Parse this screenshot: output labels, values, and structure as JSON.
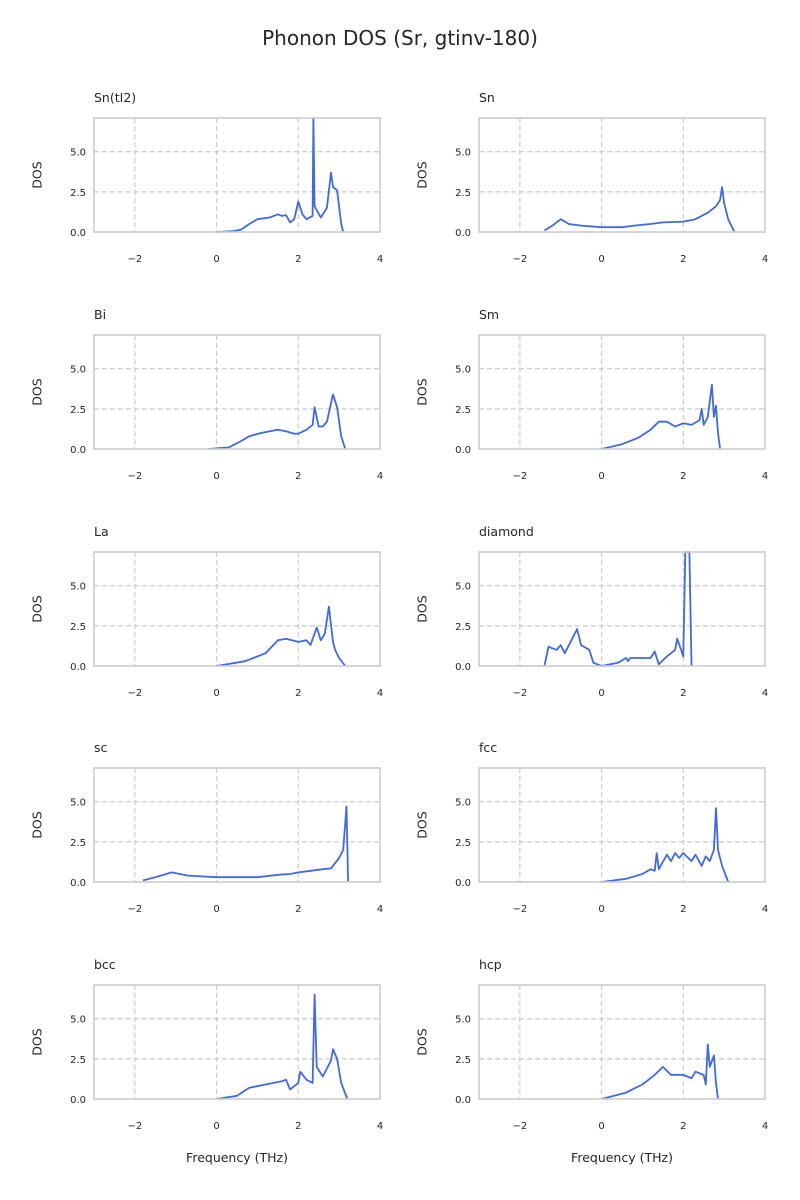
{
  "chart_data": {
    "type": "line",
    "title": "Phonon DOS (Sr, gtinv-180)",
    "xlabel": "Frequency (THz)",
    "ylabel": "DOS",
    "xlim": [
      -3,
      4
    ],
    "ylim": [
      0,
      7.1
    ],
    "xticks": [
      -2,
      0,
      2,
      4
    ],
    "xtick_labels": [
      "−2",
      "0",
      "2",
      "4"
    ],
    "yticks": [
      0,
      2.5,
      5.0
    ],
    "ytick_labels": [
      "0.0",
      "2.5",
      "5.0"
    ],
    "grid": true,
    "line_color": "#4169e1",
    "panels": [
      {
        "title": "Sn(tI2)",
        "points": [
          [
            0,
            0
          ],
          [
            0.4,
            0.05
          ],
          [
            0.6,
            0.15
          ],
          [
            0.8,
            0.5
          ],
          [
            1.0,
            0.8
          ],
          [
            1.3,
            0.9
          ],
          [
            1.5,
            1.1
          ],
          [
            1.6,
            1.0
          ],
          [
            1.7,
            1.05
          ],
          [
            1.8,
            0.6
          ],
          [
            1.9,
            0.8
          ],
          [
            2.0,
            1.9
          ],
          [
            2.1,
            1.1
          ],
          [
            2.2,
            0.8
          ],
          [
            2.35,
            1.0
          ],
          [
            2.37,
            7.1
          ],
          [
            2.4,
            1.6
          ],
          [
            2.55,
            0.9
          ],
          [
            2.7,
            1.5
          ],
          [
            2.8,
            3.7
          ],
          [
            2.85,
            2.8
          ],
          [
            2.95,
            2.6
          ],
          [
            3.05,
            0.5
          ],
          [
            3.1,
            0
          ]
        ]
      },
      {
        "title": "Sn",
        "points": [
          [
            -1.4,
            0.1
          ],
          [
            -1.2,
            0.4
          ],
          [
            -1.0,
            0.8
          ],
          [
            -0.8,
            0.5
          ],
          [
            -0.5,
            0.4
          ],
          [
            0,
            0.3
          ],
          [
            0.5,
            0.3
          ],
          [
            0.8,
            0.4
          ],
          [
            1.2,
            0.5
          ],
          [
            1.5,
            0.6
          ],
          [
            2.0,
            0.65
          ],
          [
            2.3,
            0.8
          ],
          [
            2.6,
            1.2
          ],
          [
            2.8,
            1.6
          ],
          [
            2.9,
            2.0
          ],
          [
            2.95,
            2.8
          ],
          [
            3.0,
            1.8
          ],
          [
            3.1,
            0.8
          ],
          [
            3.25,
            0
          ]
        ]
      },
      {
        "title": "Bi",
        "points": [
          [
            -0.2,
            0
          ],
          [
            0.3,
            0.1
          ],
          [
            0.6,
            0.5
          ],
          [
            0.8,
            0.8
          ],
          [
            1.1,
            1.0
          ],
          [
            1.5,
            1.2
          ],
          [
            1.7,
            1.1
          ],
          [
            1.9,
            0.95
          ],
          [
            2.0,
            0.95
          ],
          [
            2.2,
            1.2
          ],
          [
            2.35,
            1.5
          ],
          [
            2.4,
            2.6
          ],
          [
            2.5,
            1.4
          ],
          [
            2.6,
            1.4
          ],
          [
            2.7,
            1.7
          ],
          [
            2.85,
            3.4
          ],
          [
            2.95,
            2.6
          ],
          [
            3.05,
            0.8
          ],
          [
            3.15,
            0
          ]
        ]
      },
      {
        "title": "Sm",
        "points": [
          [
            0,
            0
          ],
          [
            0.5,
            0.3
          ],
          [
            0.9,
            0.7
          ],
          [
            1.2,
            1.2
          ],
          [
            1.4,
            1.7
          ],
          [
            1.6,
            1.7
          ],
          [
            1.8,
            1.4
          ],
          [
            2.0,
            1.6
          ],
          [
            2.2,
            1.5
          ],
          [
            2.4,
            1.8
          ],
          [
            2.45,
            2.5
          ],
          [
            2.5,
            1.5
          ],
          [
            2.6,
            2.0
          ],
          [
            2.7,
            4.0
          ],
          [
            2.75,
            2.0
          ],
          [
            2.8,
            2.7
          ],
          [
            2.85,
            1.0
          ],
          [
            2.9,
            0
          ]
        ]
      },
      {
        "title": "La",
        "points": [
          [
            0,
            0
          ],
          [
            0.7,
            0.3
          ],
          [
            1.2,
            0.8
          ],
          [
            1.5,
            1.6
          ],
          [
            1.7,
            1.7
          ],
          [
            2.0,
            1.5
          ],
          [
            2.2,
            1.6
          ],
          [
            2.3,
            1.3
          ],
          [
            2.45,
            2.4
          ],
          [
            2.55,
            1.6
          ],
          [
            2.65,
            2.0
          ],
          [
            2.75,
            3.7
          ],
          [
            2.85,
            1.5
          ],
          [
            2.9,
            1.0
          ],
          [
            3.0,
            0.5
          ],
          [
            3.15,
            0
          ]
        ]
      },
      {
        "title": "diamond",
        "points": [
          [
            -1.4,
            0
          ],
          [
            -1.3,
            1.2
          ],
          [
            -1.1,
            1.0
          ],
          [
            -1.0,
            1.3
          ],
          [
            -0.9,
            0.8
          ],
          [
            -0.6,
            2.3
          ],
          [
            -0.5,
            1.3
          ],
          [
            -0.3,
            1.0
          ],
          [
            -0.2,
            0.2
          ],
          [
            0,
            0
          ],
          [
            0.4,
            0.2
          ],
          [
            0.6,
            0.5
          ],
          [
            0.65,
            0.3
          ],
          [
            0.7,
            0.5
          ],
          [
            1.2,
            0.5
          ],
          [
            1.3,
            0.9
          ],
          [
            1.4,
            0.1
          ],
          [
            1.6,
            0.6
          ],
          [
            1.8,
            1.0
          ],
          [
            1.85,
            1.7
          ],
          [
            2.0,
            0.6
          ],
          [
            2.05,
            7.1
          ],
          [
            2.15,
            7.1
          ],
          [
            2.2,
            0
          ]
        ]
      },
      {
        "title": "sc",
        "points": [
          [
            -1.8,
            0.1
          ],
          [
            -1.5,
            0.3
          ],
          [
            -1.1,
            0.6
          ],
          [
            -0.7,
            0.4
          ],
          [
            0,
            0.3
          ],
          [
            1.0,
            0.3
          ],
          [
            1.5,
            0.45
          ],
          [
            1.8,
            0.5
          ],
          [
            2.0,
            0.6
          ],
          [
            2.3,
            0.7
          ],
          [
            2.6,
            0.8
          ],
          [
            2.8,
            0.85
          ],
          [
            3.0,
            1.5
          ],
          [
            3.1,
            2.0
          ],
          [
            3.18,
            4.7
          ],
          [
            3.22,
            0
          ]
        ]
      },
      {
        "title": "fcc",
        "points": [
          [
            0,
            0
          ],
          [
            0.6,
            0.2
          ],
          [
            1.0,
            0.5
          ],
          [
            1.2,
            0.8
          ],
          [
            1.3,
            0.7
          ],
          [
            1.35,
            1.8
          ],
          [
            1.4,
            0.8
          ],
          [
            1.6,
            1.7
          ],
          [
            1.7,
            1.3
          ],
          [
            1.8,
            1.8
          ],
          [
            1.9,
            1.5
          ],
          [
            2.0,
            1.8
          ],
          [
            2.2,
            1.3
          ],
          [
            2.3,
            1.7
          ],
          [
            2.45,
            1.0
          ],
          [
            2.55,
            1.6
          ],
          [
            2.65,
            1.3
          ],
          [
            2.75,
            2.0
          ],
          [
            2.8,
            4.6
          ],
          [
            2.85,
            2.0
          ],
          [
            2.95,
            1.0
          ],
          [
            3.1,
            0
          ]
        ]
      },
      {
        "title": "bcc",
        "points": [
          [
            0,
            0
          ],
          [
            0.5,
            0.2
          ],
          [
            0.8,
            0.7
          ],
          [
            1.2,
            0.9
          ],
          [
            1.6,
            1.1
          ],
          [
            1.7,
            1.2
          ],
          [
            1.8,
            0.6
          ],
          [
            2.0,
            1.0
          ],
          [
            2.05,
            1.7
          ],
          [
            2.2,
            1.2
          ],
          [
            2.35,
            1.0
          ],
          [
            2.4,
            6.5
          ],
          [
            2.45,
            2.0
          ],
          [
            2.6,
            1.4
          ],
          [
            2.8,
            2.4
          ],
          [
            2.85,
            3.1
          ],
          [
            2.95,
            2.5
          ],
          [
            3.05,
            1.0
          ],
          [
            3.2,
            0
          ]
        ]
      },
      {
        "title": "hcp",
        "points": [
          [
            0,
            0
          ],
          [
            0.6,
            0.4
          ],
          [
            1.0,
            0.9
          ],
          [
            1.3,
            1.5
          ],
          [
            1.5,
            2.0
          ],
          [
            1.7,
            1.5
          ],
          [
            2.0,
            1.5
          ],
          [
            2.2,
            1.3
          ],
          [
            2.3,
            1.7
          ],
          [
            2.5,
            1.5
          ],
          [
            2.55,
            0.9
          ],
          [
            2.6,
            3.4
          ],
          [
            2.65,
            2.0
          ],
          [
            2.75,
            2.7
          ],
          [
            2.8,
            1.0
          ],
          [
            2.85,
            0
          ]
        ]
      }
    ]
  }
}
